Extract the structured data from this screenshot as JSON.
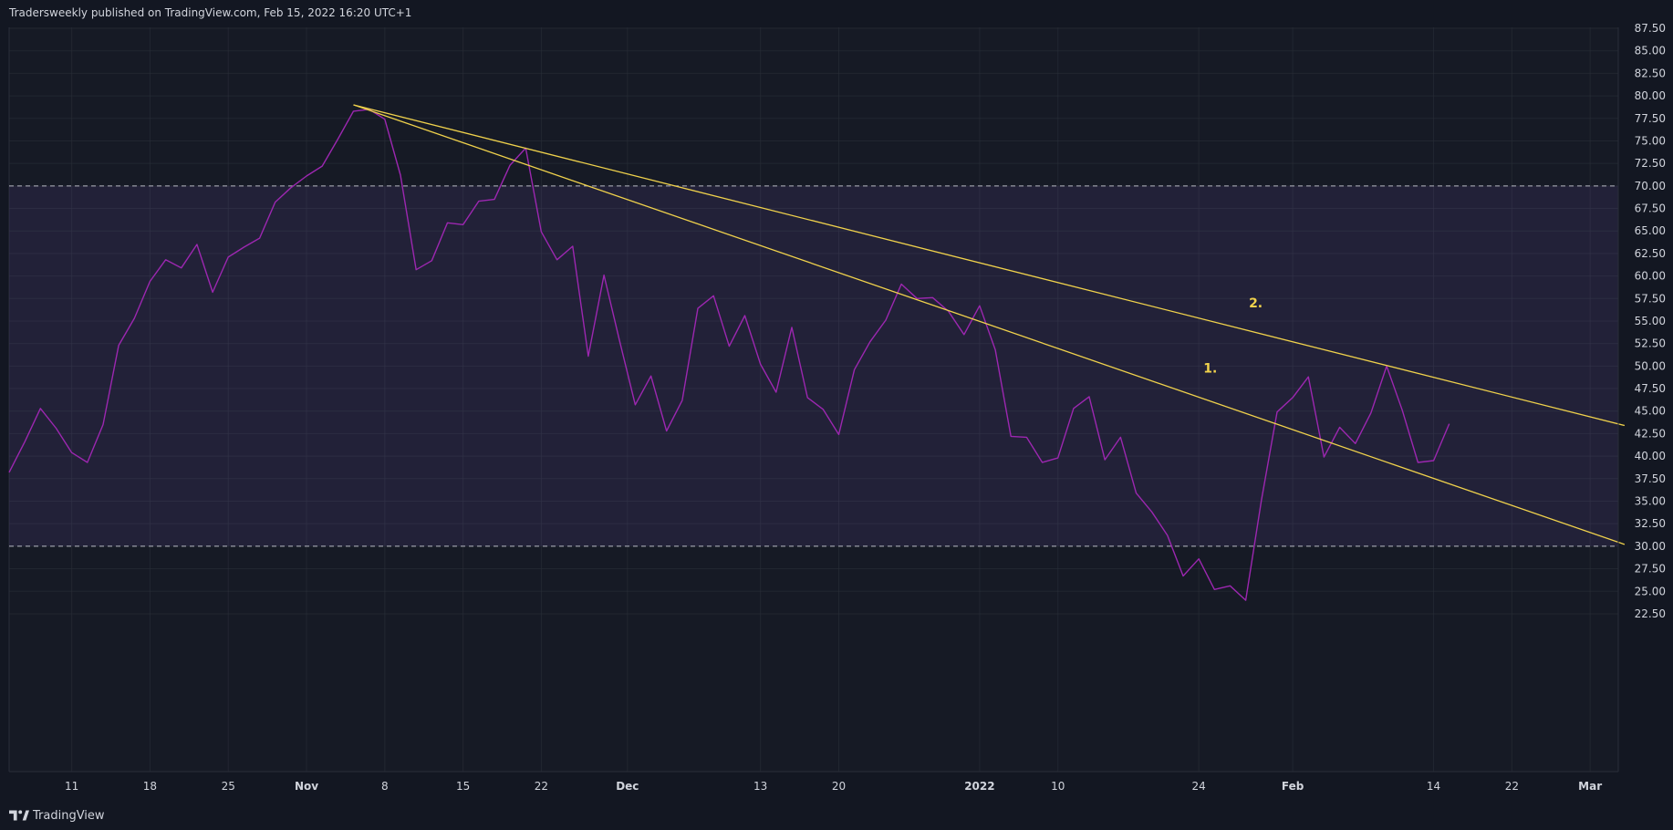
{
  "header": {
    "published_text": "Tradersweekly published on TradingView.com, Feb 15, 2022 16:20 UTC+1"
  },
  "footer": {
    "brand": "TradingView"
  },
  "colors": {
    "background": "#131722",
    "series_line": "#9c27b0",
    "band_fill": "#7e57c2",
    "trendline": "#f0d24c",
    "guide_line": "#d1d4dc",
    "grid": "#2a2e39"
  },
  "chart_data": {
    "type": "line",
    "title": "",
    "xlabel": "",
    "ylabel": "",
    "ylim": [
      20.75,
      87.5
    ],
    "y_ticks": [
      87.5,
      85,
      82.5,
      80,
      77.5,
      75,
      72.5,
      70,
      67.5,
      65,
      62.5,
      60,
      57.5,
      55,
      52.5,
      50,
      47.5,
      45,
      42.5,
      40,
      37.5,
      35,
      32.5,
      30,
      27.5,
      25,
      22.5
    ],
    "x_ticks": [
      {
        "label": "11",
        "i": 4
      },
      {
        "label": "18",
        "i": 9
      },
      {
        "label": "25",
        "i": 14
      },
      {
        "label": "Nov",
        "i": 19
      },
      {
        "label": "8",
        "i": 24
      },
      {
        "label": "15",
        "i": 29
      },
      {
        "label": "22",
        "i": 34
      },
      {
        "label": "Dec",
        "i": 39.5
      },
      {
        "label": "13",
        "i": 48
      },
      {
        "label": "20",
        "i": 53
      },
      {
        "label": "2022",
        "i": 62
      },
      {
        "label": "10",
        "i": 67
      },
      {
        "label": "24",
        "i": 76
      },
      {
        "label": "Feb",
        "i": 82
      },
      {
        "label": "14",
        "i": 91
      },
      {
        "label": "22",
        "i": 96
      },
      {
        "label": "Mar",
        "i": 101
      }
    ],
    "x_domain": [
      0,
      103.2
    ],
    "series": [
      {
        "values": [
          38.2,
          41.6,
          45.3,
          43.1,
          40.4,
          39.3,
          43.5,
          52.3,
          55.3,
          59.4,
          61.8,
          60.9,
          63.5,
          58.2,
          62.1,
          63.2,
          64.2,
          68.2,
          69.8,
          71.1,
          72.2,
          75.2,
          78.3,
          78.5,
          77.4,
          71.2,
          60.7,
          61.7,
          65.9,
          65.7,
          68.3,
          68.5,
          72.3,
          74.2,
          64.9,
          61.8,
          63.3,
          51.1,
          60.1,
          52.8,
          45.7,
          48.9,
          42.8,
          46.2,
          56.4,
          57.8,
          52.2,
          55.6,
          50.2,
          47.1,
          54.3,
          46.5,
          45.2,
          42.4,
          49.6,
          52.7,
          55.1,
          59.1,
          57.5,
          57.6,
          56.1,
          53.5,
          56.7,
          51.8,
          42.2,
          42.1,
          39.3,
          39.8,
          45.3,
          46.6,
          39.6,
          42.1,
          35.9,
          33.8,
          31.2,
          26.7,
          28.6,
          25.2,
          25.6,
          24.0,
          35.1,
          44.9,
          46.5,
          48.8,
          39.9,
          43.2,
          41.4,
          44.8,
          50.0,
          45.1,
          39.3,
          39.5,
          43.6
        ]
      }
    ],
    "bands": [
      {
        "upper": 70,
        "lower": 30
      }
    ],
    "trendlines": [
      {
        "label": "1.",
        "x1": 22,
        "y1": 79,
        "x2": 103.2,
        "y2": 30.2
      },
      {
        "label": "2.",
        "x1": 22,
        "y1": 79,
        "x2": 103.2,
        "y2": 43.4
      }
    ],
    "annotations": [
      {
        "text": "1.",
        "x": 76.3,
        "y": 49.3
      },
      {
        "text": "2.",
        "x": 79.2,
        "y": 56.5
      }
    ],
    "grid": true,
    "axis_side": "right"
  }
}
